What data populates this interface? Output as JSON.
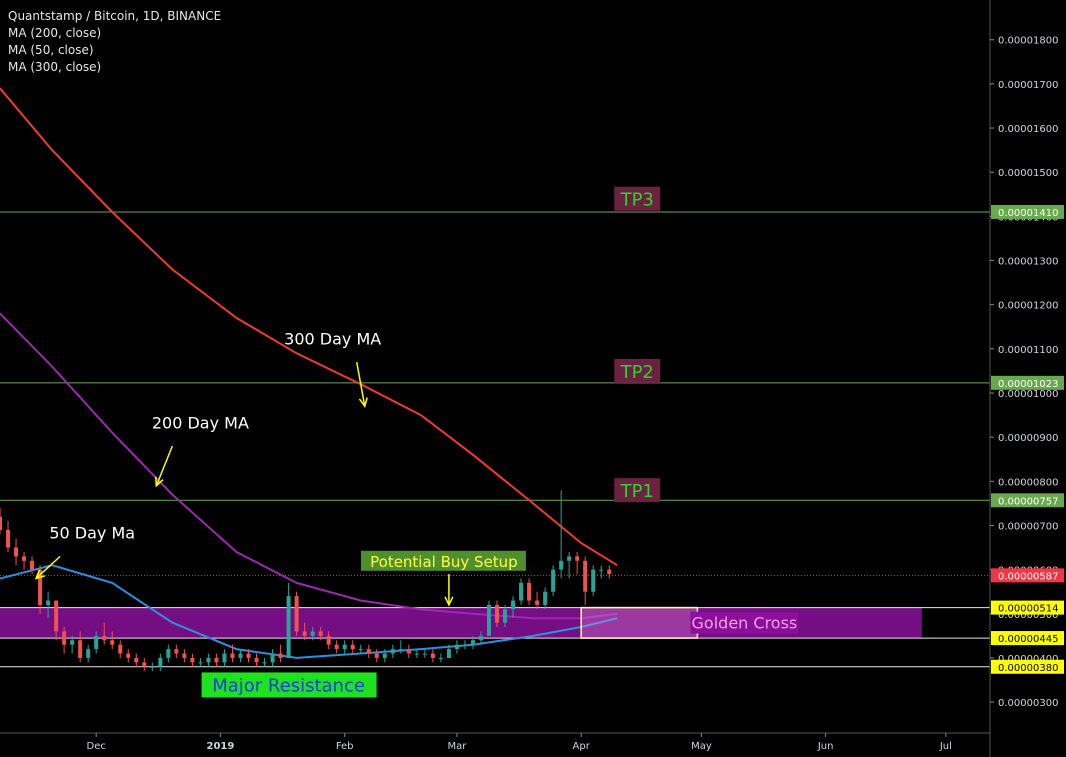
{
  "header": {
    "title": "Quantstamp / Bitcoin, 1D, BINANCE",
    "indicators": [
      "MA (200, close)",
      "MA (50, close)",
      "MA (300, close)"
    ]
  },
  "colors": {
    "background": "#000000",
    "candle_up": "#26a69a",
    "candle_down": "#ef5350",
    "ma50": "#2f8ee0",
    "ma200": "#9c27b0",
    "ma300": "#f23a2e",
    "zone_fill": "#8a0f9a",
    "tp_line": "#6aa84f",
    "tp_box": "#6b2140",
    "tp_text": "#2fd22f",
    "last_price": "#f23645",
    "level_tag": "#ffff00",
    "tp_tag": "#6aa84f",
    "arrow": "#ffff00"
  },
  "chart_data": {
    "type": "candlestick",
    "symbol": "Quantstamp / Bitcoin",
    "interval": "1D",
    "exchange": "BINANCE",
    "y_axis": {
      "ylim": [
        2.3e-06,
        1.89e-05
      ],
      "ticks": [
        "0.00000300",
        "0.00000400",
        "0.00000500",
        "0.00000600",
        "0.00000700",
        "0.00000800",
        "0.00000900",
        "0.00001000",
        "0.00001100",
        "0.00001200",
        "0.00001300",
        "0.00001400",
        "0.00001500",
        "0.00001600",
        "0.00001700",
        "0.00001800"
      ],
      "tick_values": [
        3e-06,
        4e-06,
        5e-06,
        6e-06,
        7e-06,
        8e-06,
        9e-06,
        1e-05,
        1.1e-05,
        1.2e-05,
        1.3e-05,
        1.4e-05,
        1.5e-05,
        1.6e-05,
        1.7e-05,
        1.8e-05
      ]
    },
    "x_axis": {
      "range": [
        "2018-11-07",
        "2019-07-12"
      ],
      "ticks": [
        {
          "label": "Dec",
          "date": "2018-12-01"
        },
        {
          "label": "2019",
          "date": "2019-01-01",
          "bold": true
        },
        {
          "label": "Feb",
          "date": "2019-02-01"
        },
        {
          "label": "Mar",
          "date": "2019-03-01"
        },
        {
          "label": "Apr",
          "date": "2019-04-01"
        },
        {
          "label": "May",
          "date": "2019-05-01"
        },
        {
          "label": "Jun",
          "date": "2019-06-01"
        },
        {
          "label": "Jul",
          "date": "2019-07-01"
        }
      ]
    },
    "candles": [
      {
        "date": "2018-11-07",
        "o": 7.2e-06,
        "h": 7.4e-06,
        "l": 6.8e-06,
        "c": 6.9e-06
      },
      {
        "date": "2018-11-09",
        "o": 6.9e-06,
        "h": 7.1e-06,
        "l": 6.4e-06,
        "c": 6.5e-06
      },
      {
        "date": "2018-11-11",
        "o": 6.5e-06,
        "h": 6.7e-06,
        "l": 6.1e-06,
        "c": 6.3e-06
      },
      {
        "date": "2018-11-13",
        "o": 6.3e-06,
        "h": 6.4e-06,
        "l": 6e-06,
        "c": 6.2e-06
      },
      {
        "date": "2018-11-15",
        "o": 6.2e-06,
        "h": 6.3e-06,
        "l": 5.9e-06,
        "c": 6e-06
      },
      {
        "date": "2018-11-17",
        "o": 6e-06,
        "h": 6.1e-06,
        "l": 5e-06,
        "c": 5.2e-06
      },
      {
        "date": "2018-11-19",
        "o": 5.2e-06,
        "h": 5.5e-06,
        "l": 4.9e-06,
        "c": 5.3e-06
      },
      {
        "date": "2018-11-21",
        "o": 5.3e-06,
        "h": 5.3e-06,
        "l": 4.4e-06,
        "c": 4.6e-06
      },
      {
        "date": "2018-11-23",
        "o": 4.6e-06,
        "h": 4.7e-06,
        "l": 4.1e-06,
        "c": 4.3e-06
      },
      {
        "date": "2018-11-25",
        "o": 4.3e-06,
        "h": 4.5e-06,
        "l": 4.1e-06,
        "c": 4.4e-06
      },
      {
        "date": "2018-11-27",
        "o": 4.4e-06,
        "h": 4.6e-06,
        "l": 3.9e-06,
        "c": 4e-06
      },
      {
        "date": "2018-11-29",
        "o": 4e-06,
        "h": 4.3e-06,
        "l": 3.9e-06,
        "c": 4.2e-06
      },
      {
        "date": "2018-12-01",
        "o": 4.2e-06,
        "h": 4.6e-06,
        "l": 4.1e-06,
        "c": 4.5e-06
      },
      {
        "date": "2018-12-03",
        "o": 4.5e-06,
        "h": 4.8e-06,
        "l": 4.3e-06,
        "c": 4.4e-06
      },
      {
        "date": "2018-12-05",
        "o": 4.4e-06,
        "h": 4.6e-06,
        "l": 4.2e-06,
        "c": 4.3e-06
      },
      {
        "date": "2018-12-07",
        "o": 4.3e-06,
        "h": 4.4e-06,
        "l": 4e-06,
        "c": 4.1e-06
      },
      {
        "date": "2018-12-09",
        "o": 4.1e-06,
        "h": 4.2e-06,
        "l": 3.9e-06,
        "c": 4e-06
      },
      {
        "date": "2018-12-11",
        "o": 4e-06,
        "h": 4.1e-06,
        "l": 3.8e-06,
        "c": 3.9e-06
      },
      {
        "date": "2018-12-13",
        "o": 3.9e-06,
        "h": 4e-06,
        "l": 3.7e-06,
        "c": 3.8e-06
      },
      {
        "date": "2018-12-15",
        "o": 3.8e-06,
        "h": 3.9e-06,
        "l": 3.7e-06,
        "c": 3.8e-06
      },
      {
        "date": "2018-12-17",
        "o": 3.8e-06,
        "h": 4.1e-06,
        "l": 3.7e-06,
        "c": 4e-06
      },
      {
        "date": "2018-12-19",
        "o": 4e-06,
        "h": 4.3e-06,
        "l": 3.9e-06,
        "c": 4.2e-06
      },
      {
        "date": "2018-12-21",
        "o": 4.2e-06,
        "h": 4.3e-06,
        "l": 4e-06,
        "c": 4.1e-06
      },
      {
        "date": "2018-12-23",
        "o": 4.1e-06,
        "h": 4.2e-06,
        "l": 3.9e-06,
        "c": 4e-06
      },
      {
        "date": "2018-12-25",
        "o": 4e-06,
        "h": 4.1e-06,
        "l": 3.8e-06,
        "c": 3.9e-06
      },
      {
        "date": "2018-12-27",
        "o": 3.9e-06,
        "h": 4e-06,
        "l": 3.8e-06,
        "c": 3.9e-06
      },
      {
        "date": "2018-12-29",
        "o": 3.9e-06,
        "h": 4.1e-06,
        "l": 3.8e-06,
        "c": 4e-06
      },
      {
        "date": "2018-12-31",
        "o": 4e-06,
        "h": 4.1e-06,
        "l": 3.8e-06,
        "c": 3.9e-06
      },
      {
        "date": "2019-01-02",
        "o": 3.9e-06,
        "h": 4.2e-06,
        "l": 3.8e-06,
        "c": 4.1e-06
      },
      {
        "date": "2019-01-04",
        "o": 4.1e-06,
        "h": 4.3e-06,
        "l": 3.9e-06,
        "c": 4e-06
      },
      {
        "date": "2019-01-06",
        "o": 4e-06,
        "h": 4.2e-06,
        "l": 3.9e-06,
        "c": 4.1e-06
      },
      {
        "date": "2019-01-08",
        "o": 4.1e-06,
        "h": 4.2e-06,
        "l": 3.9e-06,
        "c": 4e-06
      },
      {
        "date": "2019-01-10",
        "o": 4e-06,
        "h": 4.1e-06,
        "l": 3.8e-06,
        "c": 3.9e-06
      },
      {
        "date": "2019-01-12",
        "o": 3.9e-06,
        "h": 4e-06,
        "l": 3.8e-06,
        "c": 3.9e-06
      },
      {
        "date": "2019-01-14",
        "o": 3.9e-06,
        "h": 4.2e-06,
        "l": 3.8e-06,
        "c": 4.1e-06
      },
      {
        "date": "2019-01-16",
        "o": 4.1e-06,
        "h": 4.3e-06,
        "l": 3.9e-06,
        "c": 4e-06
      },
      {
        "date": "2019-01-18",
        "o": 4e-06,
        "h": 5.7e-06,
        "l": 4e-06,
        "c": 5.4e-06
      },
      {
        "date": "2019-01-20",
        "o": 5.4e-06,
        "h": 5.5e-06,
        "l": 4.5e-06,
        "c": 4.6e-06
      },
      {
        "date": "2019-01-22",
        "o": 4.6e-06,
        "h": 4.8e-06,
        "l": 4.4e-06,
        "c": 4.5e-06
      },
      {
        "date": "2019-01-24",
        "o": 4.5e-06,
        "h": 4.7e-06,
        "l": 4.4e-06,
        "c": 4.6e-06
      },
      {
        "date": "2019-01-26",
        "o": 4.6e-06,
        "h": 4.7e-06,
        "l": 4.4e-06,
        "c": 4.5e-06
      },
      {
        "date": "2019-01-28",
        "o": 4.5e-06,
        "h": 4.6e-06,
        "l": 4.2e-06,
        "c": 4.3e-06
      },
      {
        "date": "2019-01-30",
        "o": 4.3e-06,
        "h": 4.4e-06,
        "l": 4.1e-06,
        "c": 4.2e-06
      },
      {
        "date": "2019-02-01",
        "o": 4.2e-06,
        "h": 4.4e-06,
        "l": 4.1e-06,
        "c": 4.3e-06
      },
      {
        "date": "2019-02-03",
        "o": 4.3e-06,
        "h": 4.4e-06,
        "l": 4.1e-06,
        "c": 4.2e-06
      },
      {
        "date": "2019-02-05",
        "o": 4.2e-06,
        "h": 4.3e-06,
        "l": 4.1e-06,
        "c": 4.2e-06
      },
      {
        "date": "2019-02-07",
        "o": 4.2e-06,
        "h": 4.3e-06,
        "l": 4e-06,
        "c": 4.1e-06
      },
      {
        "date": "2019-02-09",
        "o": 4.1e-06,
        "h": 4.2e-06,
        "l": 3.9e-06,
        "c": 4e-06
      },
      {
        "date": "2019-02-11",
        "o": 4e-06,
        "h": 4.2e-06,
        "l": 3.9e-06,
        "c": 4.1e-06
      },
      {
        "date": "2019-02-13",
        "o": 4.1e-06,
        "h": 4.3e-06,
        "l": 4e-06,
        "c": 4.2e-06
      },
      {
        "date": "2019-02-15",
        "o": 4.2e-06,
        "h": 4.4e-06,
        "l": 4.1e-06,
        "c": 4.2e-06
      },
      {
        "date": "2019-02-17",
        "o": 4.2e-06,
        "h": 4.3e-06,
        "l": 4e-06,
        "c": 4.1e-06
      },
      {
        "date": "2019-02-19",
        "o": 4.1e-06,
        "h": 4.2e-06,
        "l": 4e-06,
        "c": 4.1e-06
      },
      {
        "date": "2019-02-21",
        "o": 4.1e-06,
        "h": 4.2e-06,
        "l": 4e-06,
        "c": 4.1e-06
      },
      {
        "date": "2019-02-23",
        "o": 4.1e-06,
        "h": 4.2e-06,
        "l": 3.9e-06,
        "c": 4e-06
      },
      {
        "date": "2019-02-25",
        "o": 4e-06,
        "h": 4.1e-06,
        "l": 3.9e-06,
        "c": 4e-06
      },
      {
        "date": "2019-02-27",
        "o": 4e-06,
        "h": 4.3e-06,
        "l": 4e-06,
        "c": 4.2e-06
      },
      {
        "date": "2019-03-01",
        "o": 4.2e-06,
        "h": 4.4e-06,
        "l": 4.1e-06,
        "c": 4.3e-06
      },
      {
        "date": "2019-03-03",
        "o": 4.3e-06,
        "h": 4.4e-06,
        "l": 4.2e-06,
        "c": 4.3e-06
      },
      {
        "date": "2019-03-05",
        "o": 4.3e-06,
        "h": 4.5e-06,
        "l": 4.2e-06,
        "c": 4.4e-06
      },
      {
        "date": "2019-03-07",
        "o": 4.4e-06,
        "h": 4.6e-06,
        "l": 4.3e-06,
        "c": 4.5e-06
      },
      {
        "date": "2019-03-09",
        "o": 4.5e-06,
        "h": 5.3e-06,
        "l": 4.5e-06,
        "c": 5.2e-06
      },
      {
        "date": "2019-03-11",
        "o": 5.2e-06,
        "h": 5.3e-06,
        "l": 4.7e-06,
        "c": 4.8e-06
      },
      {
        "date": "2019-03-13",
        "o": 4.8e-06,
        "h": 5.2e-06,
        "l": 4.7e-06,
        "c": 5.1e-06
      },
      {
        "date": "2019-03-15",
        "o": 5.1e-06,
        "h": 5.4e-06,
        "l": 4.9e-06,
        "c": 5.3e-06
      },
      {
        "date": "2019-03-17",
        "o": 5.3e-06,
        "h": 5.8e-06,
        "l": 5.2e-06,
        "c": 5.7e-06
      },
      {
        "date": "2019-03-19",
        "o": 5.7e-06,
        "h": 5.8e-06,
        "l": 5.2e-06,
        "c": 5.3e-06
      },
      {
        "date": "2019-03-21",
        "o": 5.3e-06,
        "h": 5.5e-06,
        "l": 5.1e-06,
        "c": 5.2e-06
      },
      {
        "date": "2019-03-23",
        "o": 5.2e-06,
        "h": 5.6e-06,
        "l": 5.1e-06,
        "c": 5.5e-06
      },
      {
        "date": "2019-03-25",
        "o": 5.5e-06,
        "h": 6.1e-06,
        "l": 5.4e-06,
        "c": 6e-06
      },
      {
        "date": "2019-03-27",
        "o": 6e-06,
        "h": 7.8e-06,
        "l": 5.8e-06,
        "c": 6.2e-06
      },
      {
        "date": "2019-03-29",
        "o": 6.2e-06,
        "h": 6.4e-06,
        "l": 5.8e-06,
        "c": 6.3e-06
      },
      {
        "date": "2019-03-31",
        "o": 6.3e-06,
        "h": 6.4e-06,
        "l": 5.9e-06,
        "c": 6.2e-06
      },
      {
        "date": "2019-04-02",
        "o": 6.2e-06,
        "h": 6.3e-06,
        "l": 5.2e-06,
        "c": 5.5e-06
      },
      {
        "date": "2019-04-04",
        "o": 5.5e-06,
        "h": 6.1e-06,
        "l": 5.4e-06,
        "c": 6e-06
      },
      {
        "date": "2019-04-06",
        "o": 6e-06,
        "h": 6.1e-06,
        "l": 5.8e-06,
        "c": 6e-06
      },
      {
        "date": "2019-04-08",
        "o": 6e-06,
        "h": 6.1e-06,
        "l": 5.8e-06,
        "c": 5.9e-06
      }
    ],
    "moving_averages": [
      {
        "name": "MA (300, close)",
        "color": "#f23a2e",
        "points": [
          [
            "2018-11-07",
            1.69e-05
          ],
          [
            "2018-11-20",
            1.55e-05
          ],
          [
            "2018-12-05",
            1.41e-05
          ],
          [
            "2018-12-20",
            1.28e-05
          ],
          [
            "2019-01-05",
            1.17e-05
          ],
          [
            "2019-01-20",
            1.09e-05
          ],
          [
            "2019-02-05",
            1.02e-05
          ],
          [
            "2019-02-20",
            9.5e-06
          ],
          [
            "2019-03-05",
            8.6e-06
          ],
          [
            "2019-03-20",
            7.5e-06
          ],
          [
            "2019-04-01",
            6.6e-06
          ],
          [
            "2019-04-10",
            6.1e-06
          ]
        ]
      },
      {
        "name": "MA (200, close)",
        "color": "#9c27b0",
        "points": [
          [
            "2018-11-07",
            1.18e-05
          ],
          [
            "2018-11-20",
            1.06e-05
          ],
          [
            "2018-12-05",
            9.1e-06
          ],
          [
            "2018-12-20",
            7.7e-06
          ],
          [
            "2019-01-05",
            6.4e-06
          ],
          [
            "2019-01-20",
            5.7e-06
          ],
          [
            "2019-02-05",
            5.3e-06
          ],
          [
            "2019-02-20",
            5.1e-06
          ],
          [
            "2019-03-05",
            5e-06
          ],
          [
            "2019-03-20",
            4.9e-06
          ],
          [
            "2019-04-01",
            4.9e-06
          ],
          [
            "2019-04-10",
            5e-06
          ]
        ]
      },
      {
        "name": "MA (50, close)",
        "color": "#2f8ee0",
        "points": [
          [
            "2018-11-07",
            5.8e-06
          ],
          [
            "2018-11-20",
            6.1e-06
          ],
          [
            "2018-12-05",
            5.7e-06
          ],
          [
            "2018-12-20",
            4.8e-06
          ],
          [
            "2019-01-05",
            4.2e-06
          ],
          [
            "2019-01-20",
            4e-06
          ],
          [
            "2019-02-05",
            4.1e-06
          ],
          [
            "2019-02-20",
            4.2e-06
          ],
          [
            "2019-03-05",
            4.3e-06
          ],
          [
            "2019-03-20",
            4.5e-06
          ],
          [
            "2019-04-01",
            4.7e-06
          ],
          [
            "2019-04-10",
            4.9e-06
          ]
        ]
      }
    ],
    "horizontal_levels": [
      {
        "price": 1.41e-05,
        "label": "0.00001410",
        "kind": "tp"
      },
      {
        "price": 1.023e-05,
        "label": "0.00001023",
        "kind": "tp"
      },
      {
        "price": 7.57e-06,
        "label": "0.00000757",
        "kind": "tp"
      },
      {
        "price": 5.14e-06,
        "label": "0.00000514",
        "kind": "level"
      },
      {
        "price": 4.45e-06,
        "label": "0.00000445",
        "kind": "level"
      },
      {
        "price": 3.8e-06,
        "label": "0.00000380",
        "kind": "level"
      }
    ],
    "last_price": {
      "price": 5.87e-06,
      "label": "0.00000587"
    },
    "zone": {
      "from": "2018-11-07",
      "to": "2019-06-25",
      "low": 4.45e-06,
      "high": 5.14e-06
    },
    "golden_cross_box": {
      "from": "2019-04-01",
      "to": "2019-04-30",
      "low": 4.45e-06,
      "high": 5.14e-06
    },
    "annotations": [
      {
        "text": "TP3",
        "date": "2019-04-10",
        "price": 1.44e-05,
        "style": "tp"
      },
      {
        "text": "TP2",
        "date": "2019-04-10",
        "price": 1.05e-05,
        "style": "tp"
      },
      {
        "text": "TP1",
        "date": "2019-04-10",
        "price": 7.8e-06,
        "style": "tp"
      },
      {
        "text": "300 Day MA",
        "date": "2019-01-29",
        "price": 1.11e-05,
        "style": "plain"
      },
      {
        "text": "200 Day MA",
        "date": "2018-12-27",
        "price": 9.2e-06,
        "style": "plain"
      },
      {
        "text": "50 Day Ma",
        "date": "2018-11-30",
        "price": 6.7e-06,
        "style": "plain"
      },
      {
        "text": "Potential Buy Setup",
        "date": "2019-03-01",
        "price": 6.2e-06,
        "style": "buy"
      },
      {
        "text": "Golden Cross",
        "date": "2019-04-29",
        "price": 4.8e-06,
        "style": "golden"
      },
      {
        "text": "Major Resistance",
        "date": "2019-01-18",
        "price": 3.4e-06,
        "style": "resistance"
      }
    ],
    "arrows": [
      {
        "from_date": "2019-02-04",
        "from_price": 1.07e-05,
        "to_date": "2019-02-06",
        "to_price": 9.7e-06
      },
      {
        "from_date": "2018-12-20",
        "from_price": 8.8e-06,
        "to_date": "2018-12-16",
        "to_price": 7.9e-06
      },
      {
        "from_date": "2018-11-22",
        "from_price": 6.3e-06,
        "to_date": "2018-11-16",
        "to_price": 5.8e-06
      },
      {
        "from_date": "2019-02-27",
        "from_price": 5.9e-06,
        "to_date": "2019-02-27",
        "to_price": 5.2e-06
      }
    ]
  }
}
